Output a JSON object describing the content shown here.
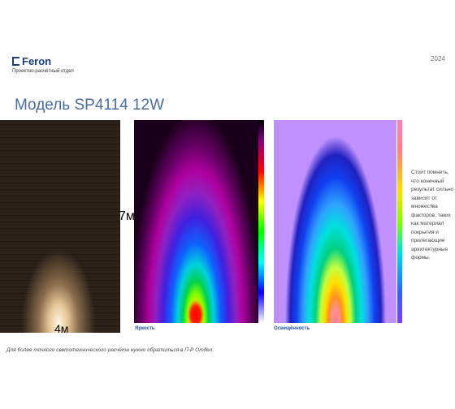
{
  "header": {
    "logo": "Feron",
    "department": "Проектно-расчётный отдел",
    "year": "2024"
  },
  "title": "Модель SP4114 12W",
  "dimensions": {
    "height": "7м",
    "width": "4м"
  },
  "panels": {
    "luminance": "Яркость",
    "illuminance": "Освещённость"
  },
  "note": "Стоит помнить, что конечный результат сильно зависит от множества факторов, таких как материал покрытия и прилегающие архитектурные формы.",
  "footer": "Для более точного светотехнического расчёта нужно обратиться в П-Р Отдел."
}
